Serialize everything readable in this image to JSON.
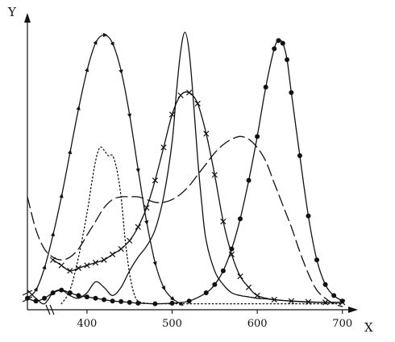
{
  "chart_data": {
    "type": "line",
    "title": "",
    "xlabel": "X",
    "ylabel": "Y",
    "xlim": [
      330,
      705
    ],
    "ylim": [
      0,
      1
    ],
    "xticks": [
      400,
      500,
      600,
      700
    ],
    "grid": false,
    "legend": "none",
    "series": [
      {
        "style": "solid-triangle-markers",
        "marker": "triangle",
        "x": [
          330,
          340,
          350,
          360,
          370,
          380,
          390,
          400,
          410,
          420,
          430,
          440,
          450,
          460,
          470,
          480,
          490,
          500,
          510
        ],
        "y": [
          0.03,
          0.06,
          0.14,
          0.26,
          0.4,
          0.56,
          0.72,
          0.86,
          0.96,
          0.99,
          0.96,
          0.86,
          0.7,
          0.5,
          0.31,
          0.16,
          0.07,
          0.03,
          0.01
        ]
      },
      {
        "style": "solid-no-markers",
        "marker": "none",
        "x": [
          330,
          340,
          350,
          360,
          370,
          380,
          390,
          400,
          410,
          420,
          430,
          440,
          450,
          460,
          470,
          480,
          490,
          500,
          505,
          510,
          515,
          520,
          525,
          530,
          535,
          540,
          550,
          560,
          570,
          580,
          590,
          600,
          610,
          620,
          640,
          660,
          680,
          700
        ],
        "y": [
          0.06,
          0.03,
          0.01,
          0.05,
          0.06,
          0.04,
          0.03,
          0.05,
          0.09,
          0.07,
          0.04,
          0.07,
          0.13,
          0.18,
          0.22,
          0.28,
          0.4,
          0.6,
          0.78,
          0.93,
          1.0,
          0.93,
          0.75,
          0.54,
          0.37,
          0.24,
          0.13,
          0.08,
          0.05,
          0.04,
          0.035,
          0.03,
          0.028,
          0.025,
          0.02,
          0.016,
          0.015,
          0.015
        ]
      },
      {
        "style": "solid-x-markers",
        "marker": "x",
        "x": [
          360,
          370,
          380,
          390,
          400,
          410,
          420,
          430,
          440,
          450,
          460,
          470,
          480,
          490,
          500,
          510,
          520,
          530,
          540,
          550,
          560,
          570,
          580,
          590,
          600,
          620,
          640,
          660,
          680,
          700
        ],
        "y": [
          0.17,
          0.15,
          0.13,
          0.14,
          0.15,
          0.16,
          0.17,
          0.19,
          0.21,
          0.24,
          0.29,
          0.36,
          0.46,
          0.58,
          0.7,
          0.77,
          0.78,
          0.74,
          0.63,
          0.48,
          0.31,
          0.19,
          0.11,
          0.07,
          0.04,
          0.025,
          0.02,
          0.017,
          0.015,
          0.015
        ]
      },
      {
        "style": "solid-dot-markers",
        "marker": "dot",
        "x": [
          330,
          340,
          350,
          360,
          370,
          380,
          390,
          400,
          410,
          420,
          430,
          440,
          450,
          460,
          480,
          500,
          520,
          540,
          550,
          560,
          570,
          580,
          590,
          600,
          610,
          620,
          625,
          630,
          635,
          640,
          650,
          660,
          670,
          680,
          690,
          700
        ],
        "y": [
          0.03,
          0.02,
          0.03,
          0.05,
          0.06,
          0.05,
          0.04,
          0.035,
          0.03,
          0.025,
          0.02,
          0.018,
          0.015,
          0.012,
          0.01,
          0.012,
          0.02,
          0.05,
          0.08,
          0.13,
          0.21,
          0.32,
          0.46,
          0.62,
          0.8,
          0.94,
          0.97,
          0.96,
          0.9,
          0.78,
          0.55,
          0.33,
          0.17,
          0.08,
          0.04,
          0.02
        ]
      },
      {
        "style": "dotted",
        "marker": "none",
        "x": [
          370,
          380,
          390,
          400,
          405,
          410,
          415,
          420,
          425,
          430,
          435,
          440,
          445,
          450,
          455,
          460,
          470,
          480,
          500,
          550,
          600,
          650,
          700
        ],
        "y": [
          0.01,
          0.06,
          0.18,
          0.34,
          0.44,
          0.53,
          0.58,
          0.57,
          0.55,
          0.55,
          0.5,
          0.4,
          0.24,
          0.12,
          0.05,
          0.02,
          0.012,
          0.01,
          0.01,
          0.01,
          0.01,
          0.01,
          0.01
        ]
      },
      {
        "style": "dashed",
        "marker": "none",
        "x": [
          330,
          340,
          350,
          360,
          370,
          380,
          390,
          400,
          410,
          420,
          430,
          440,
          450,
          460,
          470,
          480,
          490,
          500,
          510,
          520,
          530,
          540,
          550,
          560,
          570,
          580,
          590,
          600,
          610,
          620,
          630,
          640,
          650,
          660,
          670,
          680,
          690,
          700
        ],
        "y": [
          0.4,
          0.28,
          0.21,
          0.18,
          0.17,
          0.18,
          0.21,
          0.26,
          0.31,
          0.36,
          0.39,
          0.4,
          0.4,
          0.4,
          0.39,
          0.38,
          0.38,
          0.39,
          0.41,
          0.44,
          0.48,
          0.52,
          0.56,
          0.59,
          0.61,
          0.62,
          0.61,
          0.58,
          0.53,
          0.45,
          0.37,
          0.29,
          0.2,
          0.12,
          0.06,
          0.03,
          0.01,
          0.0
        ]
      }
    ]
  }
}
